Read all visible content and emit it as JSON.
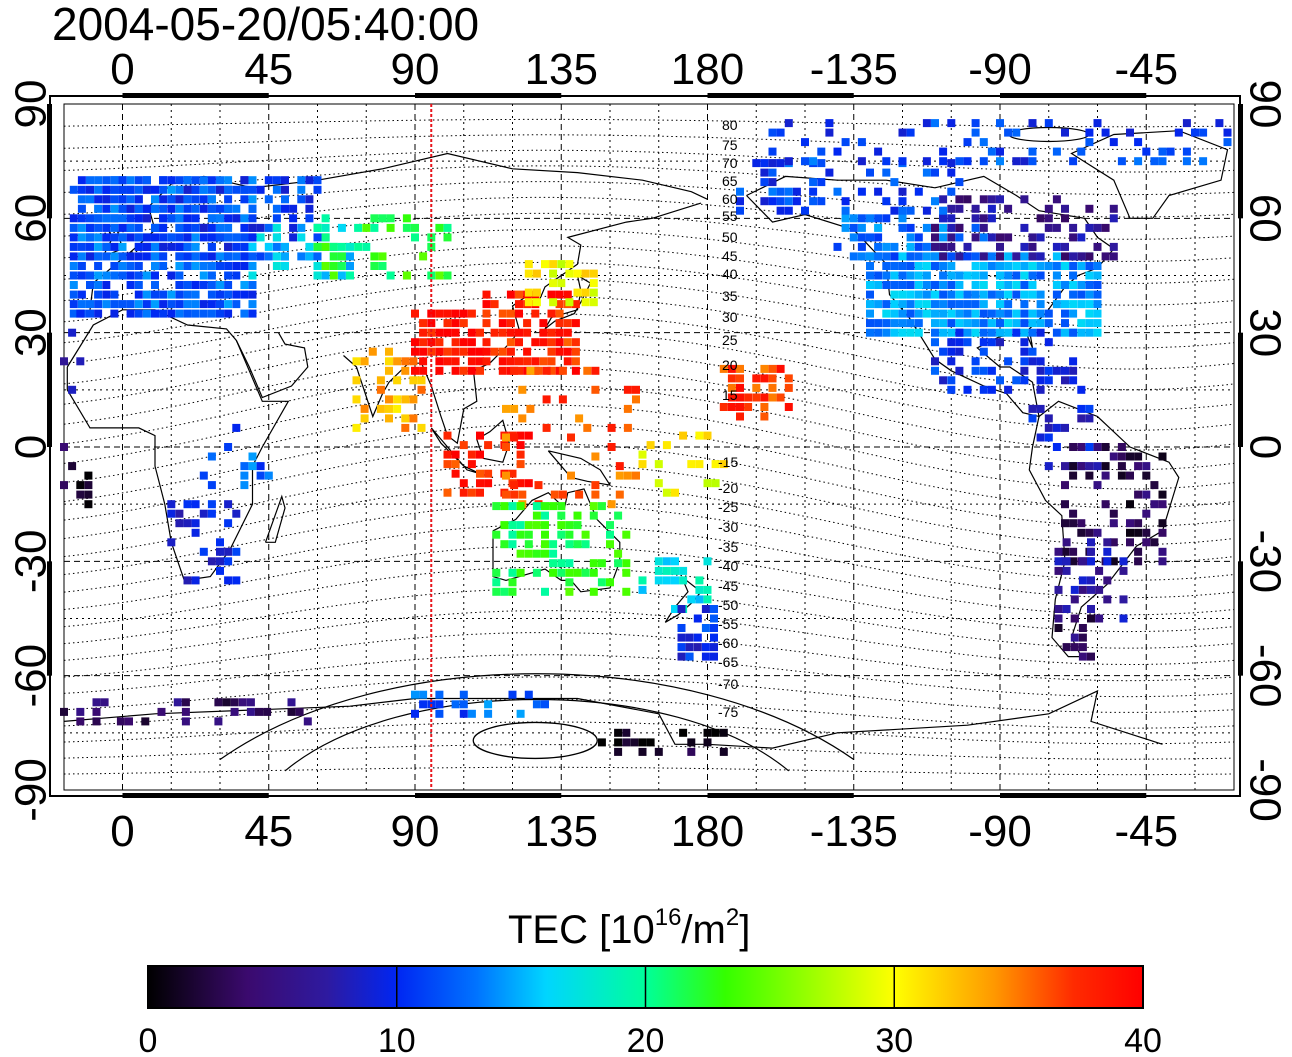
{
  "title": "2004-05-20/05:40:00",
  "map": {
    "top_lon_labels": [
      "0",
      "45",
      "90",
      "135",
      "180",
      "-135",
      "-90",
      "-45"
    ],
    "bottom_lon_labels": [
      "0",
      "45",
      "90",
      "135",
      "180",
      "-135",
      "-90",
      "-45"
    ],
    "lat_labels": [
      "90",
      "60",
      "30",
      "0",
      "-30",
      "-60",
      "-90"
    ],
    "sun_longitude_marker": 95,
    "marker_color": "#e8141b",
    "contour_labels_north": [
      "80",
      "75",
      "70",
      "65",
      "60",
      "55",
      "50",
      "45",
      "40",
      "35",
      "30",
      "25",
      "20",
      "15"
    ],
    "contour_labels_south": [
      "-15",
      "-20",
      "-25",
      "-30",
      "-35",
      "-40",
      "-45",
      "-50",
      "-55",
      "-60",
      "-65",
      "-70",
      "-75"
    ]
  },
  "colorbar": {
    "title_prefix": "TEC  [10",
    "title_exp1": "16",
    "title_mid": "/m",
    "title_exp2": "2",
    "title_suffix": "]",
    "min": 0,
    "max": 40,
    "tick_labels": [
      "0",
      "10",
      "20",
      "30",
      "40"
    ],
    "colors": [
      "#000000",
      "#3b0a6e",
      "#2e1aa0",
      "#0026f2",
      "#0073ff",
      "#00d5ff",
      "#00ff9a",
      "#34ff00",
      "#ffff00",
      "#ff9900",
      "#ff2b00",
      "#ff0000"
    ]
  }
}
